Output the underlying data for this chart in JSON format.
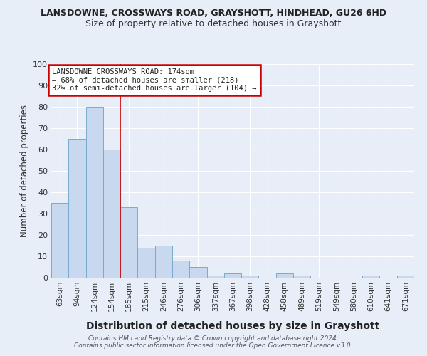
{
  "title1": "LANSDOWNE, CROSSWAYS ROAD, GRAYSHOTT, HINDHEAD, GU26 6HD",
  "title2": "Size of property relative to detached houses in Grayshott",
  "xlabel": "Distribution of detached houses by size in Grayshott",
  "ylabel": "Number of detached properties",
  "categories": [
    "63sqm",
    "94sqm",
    "124sqm",
    "154sqm",
    "185sqm",
    "215sqm",
    "246sqm",
    "276sqm",
    "306sqm",
    "337sqm",
    "367sqm",
    "398sqm",
    "428sqm",
    "458sqm",
    "489sqm",
    "519sqm",
    "549sqm",
    "580sqm",
    "610sqm",
    "641sqm",
    "671sqm"
  ],
  "values": [
    35,
    65,
    80,
    60,
    33,
    14,
    15,
    8,
    5,
    1,
    2,
    1,
    0,
    2,
    1,
    0,
    0,
    0,
    1,
    0,
    1
  ],
  "bar_color": "#c8d8ee",
  "bar_edge_color": "#7aaad0",
  "ylim": [
    0,
    100
  ],
  "yticks": [
    0,
    10,
    20,
    30,
    40,
    50,
    60,
    70,
    80,
    90,
    100
  ],
  "red_line_index": 4,
  "annotation_box_text": "LANSDOWNE CROSSWAYS ROAD: 174sqm\n← 68% of detached houses are smaller (218)\n32% of semi-detached houses are larger (104) →",
  "annotation_box_color": "#ffffff",
  "annotation_box_edge_color": "#cc0000",
  "footer1": "Contains HM Land Registry data © Crown copyright and database right 2024.",
  "footer2": "Contains public sector information licensed under the Open Government Licence v3.0.",
  "background_color": "#e8eef8",
  "grid_color": "#ffffff"
}
